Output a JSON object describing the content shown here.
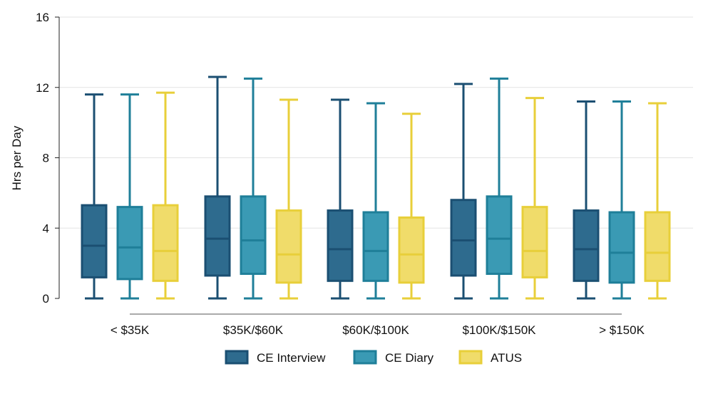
{
  "chart_data": {
    "type": "box",
    "ylabel": "Hrs per Day",
    "ylim": [
      0,
      16
    ],
    "yticks": [
      0,
      4,
      8,
      12,
      16
    ],
    "grid": true,
    "legend_position": "bottom",
    "categories": [
      "< $35K",
      "$35K/$60K",
      "$60K/$100K",
      "$100K/$150K",
      "> $150K"
    ],
    "series": [
      {
        "name": "CE Interview",
        "color": "#2e6b8e",
        "edge": "#1b4f72",
        "boxes": [
          {
            "whisker_low": 0,
            "q1": 1.2,
            "median": 3.0,
            "q3": 5.3,
            "whisker_high": 11.6
          },
          {
            "whisker_low": 0,
            "q1": 1.3,
            "median": 3.4,
            "q3": 5.8,
            "whisker_high": 12.6
          },
          {
            "whisker_low": 0,
            "q1": 1.0,
            "median": 2.8,
            "q3": 5.0,
            "whisker_high": 11.3
          },
          {
            "whisker_low": 0,
            "q1": 1.3,
            "median": 3.3,
            "q3": 5.6,
            "whisker_high": 12.2
          },
          {
            "whisker_low": 0,
            "q1": 1.0,
            "median": 2.8,
            "q3": 5.0,
            "whisker_high": 11.2
          }
        ]
      },
      {
        "name": "CE Diary",
        "color": "#3a9ab4",
        "edge": "#1f7f99",
        "boxes": [
          {
            "whisker_low": 0,
            "q1": 1.1,
            "median": 2.9,
            "q3": 5.2,
            "whisker_high": 11.6
          },
          {
            "whisker_low": 0,
            "q1": 1.4,
            "median": 3.3,
            "q3": 5.8,
            "whisker_high": 12.5
          },
          {
            "whisker_low": 0,
            "q1": 1.0,
            "median": 2.7,
            "q3": 4.9,
            "whisker_high": 11.1
          },
          {
            "whisker_low": 0,
            "q1": 1.4,
            "median": 3.4,
            "q3": 5.8,
            "whisker_high": 12.5
          },
          {
            "whisker_low": 0,
            "q1": 0.9,
            "median": 2.6,
            "q3": 4.9,
            "whisker_high": 11.2
          }
        ]
      },
      {
        "name": "ATUS",
        "color": "#f0dc6a",
        "edge": "#e8cf3a",
        "boxes": [
          {
            "whisker_low": 0,
            "q1": 1.0,
            "median": 2.7,
            "q3": 5.3,
            "whisker_high": 11.7
          },
          {
            "whisker_low": 0,
            "q1": 0.9,
            "median": 2.5,
            "q3": 5.0,
            "whisker_high": 11.3
          },
          {
            "whisker_low": 0,
            "q1": 0.9,
            "median": 2.5,
            "q3": 4.6,
            "whisker_high": 10.5
          },
          {
            "whisker_low": 0,
            "q1": 1.2,
            "median": 2.7,
            "q3": 5.2,
            "whisker_high": 11.4
          },
          {
            "whisker_low": 0,
            "q1": 1.0,
            "median": 2.6,
            "q3": 4.9,
            "whisker_high": 11.1
          }
        ]
      }
    ]
  }
}
